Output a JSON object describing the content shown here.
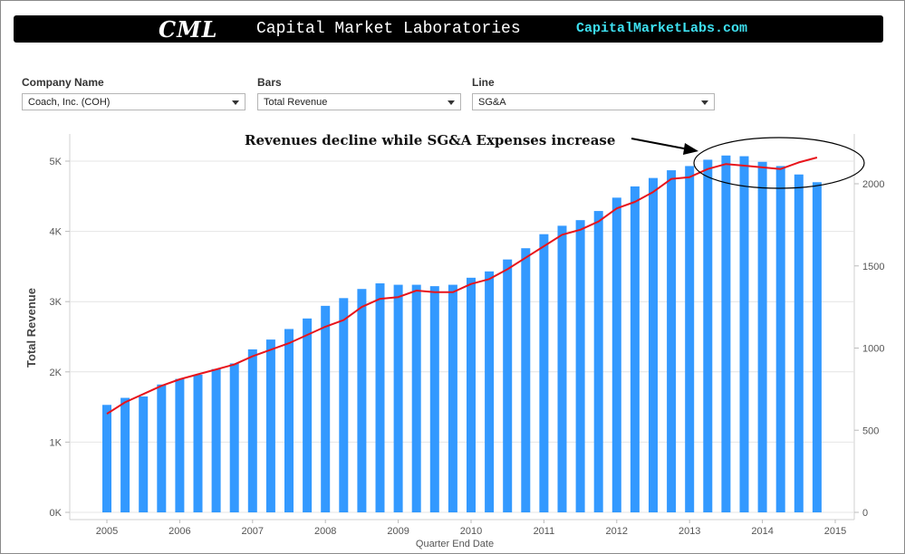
{
  "banner": {
    "logo": "CML",
    "title": "Capital Market Laboratories",
    "url": "CapitalMarketLabs.com"
  },
  "controls": [
    {
      "label": "Company Name",
      "value": "Coach, Inc. (COH)"
    },
    {
      "label": "Bars",
      "value": "Total Revenue"
    },
    {
      "label": "Line",
      "value": "SG&A"
    }
  ],
  "colors": {
    "bar": "#3399ff",
    "line": "#e8141b",
    "axis_text": "#555555",
    "grid": "#e4e4e4"
  },
  "chart_data": {
    "type": "bar",
    "title": "",
    "annotation": "Revenues decline while SG&A Expenses increase",
    "xlabel": "Quarter End Date",
    "ylabel": "Total Revenue",
    "y2label": "",
    "ylim": [
      0,
      5200
    ],
    "y2lim": [
      0,
      2170
    ],
    "yticks": [
      {
        "v": 0,
        "label": "0K"
      },
      {
        "v": 1000,
        "label": "1K"
      },
      {
        "v": 2000,
        "label": "2K"
      },
      {
        "v": 3000,
        "label": "3K"
      },
      {
        "v": 4000,
        "label": "4K"
      },
      {
        "v": 5000,
        "label": "5K"
      }
    ],
    "y2ticks": [
      0,
      500,
      1000,
      1500,
      2000
    ],
    "xticks": [
      "2005",
      "2006",
      "2007",
      "2008",
      "2009",
      "2010",
      "2011",
      "2012",
      "2013",
      "2014",
      "2015"
    ],
    "series": [
      {
        "name": "Total Revenue",
        "type": "bar",
        "axis": "left",
        "values": [
          1530,
          1630,
          1650,
          1820,
          1900,
          1960,
          2040,
          2120,
          2320,
          2460,
          2610,
          2760,
          2940,
          3050,
          3180,
          3260,
          3240,
          3240,
          3220,
          3240,
          3340,
          3430,
          3600,
          3760,
          3960,
          4080,
          4160,
          4290,
          4480,
          4640,
          4760,
          4870,
          4930,
          5020,
          5080,
          5070,
          4990,
          4930,
          4810,
          4700
        ]
      },
      {
        "name": "SG&A",
        "type": "line",
        "axis": "right",
        "values": [
          600,
          670,
          720,
          770,
          810,
          840,
          870,
          900,
          950,
          990,
          1030,
          1080,
          1130,
          1170,
          1250,
          1300,
          1310,
          1350,
          1340,
          1340,
          1390,
          1420,
          1480,
          1550,
          1620,
          1690,
          1720,
          1770,
          1850,
          1890,
          1950,
          2030,
          2040,
          2090,
          2120,
          2110,
          2100,
          2090,
          2130,
          2160
        ]
      }
    ]
  }
}
